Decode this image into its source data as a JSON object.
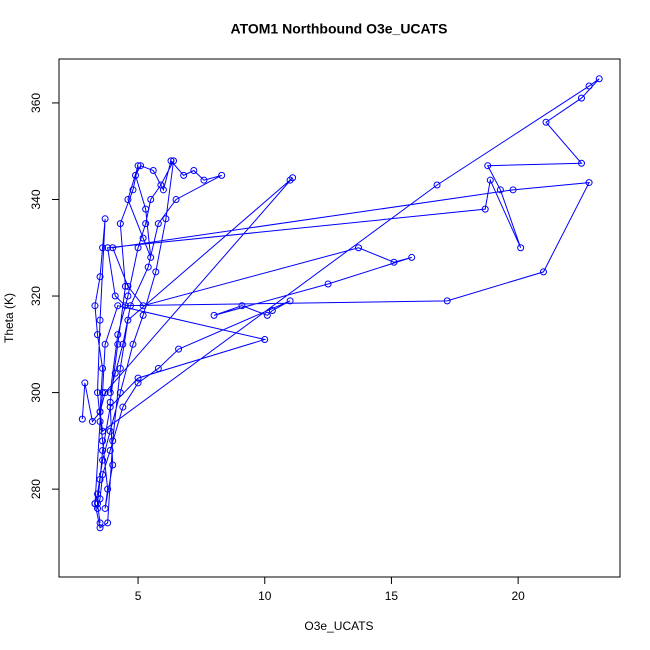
{
  "chart_data": {
    "type": "line",
    "title": "ATOM1 Northbound O3e_UCATS",
    "x_label": "O3e_UCATS",
    "y_label": "Theta (K)",
    "color": "#0000ff",
    "markers": true,
    "grid": false,
    "xlim": [
      1.88,
      24.02
    ],
    "xticks": [
      5,
      10,
      15,
      20
    ],
    "ylim": [
      261.8,
      369.1
    ],
    "yticks": [
      280,
      300,
      320,
      340,
      360
    ],
    "x": [
      2.8,
      2.9,
      3.2,
      3.5,
      3.6,
      3.4,
      3.3,
      3.5,
      3.6,
      3.7,
      3.5,
      3.4,
      3.6,
      3.8,
      3.7,
      4.0,
      3.9,
      4.2,
      4.5,
      4.3,
      4.8,
      5.0,
      4.6,
      5.2,
      5.5,
      5.3,
      4.9,
      5.1,
      5.6,
      6.0,
      6.3,
      6.8,
      7.2,
      7.6,
      8.3,
      6.5,
      5.8,
      5.4,
      4.7,
      4.4,
      4.1,
      3.9,
      4.2,
      4.6,
      5.0,
      5.3,
      5.5,
      5.9,
      6.4,
      6.1,
      5.7,
      5.2,
      4.8,
      4.3,
      3.9,
      3.6,
      3.4,
      3.3,
      3.5,
      3.8,
      4.0,
      4.3,
      4.6,
      11.0,
      11.1,
      3.7,
      3.5,
      3.6,
      16.8,
      22.8,
      23.2,
      22.5,
      21.1,
      22.5,
      18.8,
      19.3,
      20.1,
      18.9,
      18.7,
      3.8,
      4.1,
      4.5,
      17.2,
      21.0,
      22.8,
      19.8,
      4.0,
      4.6,
      5.2,
      13.7,
      15.1,
      15.8,
      12.5,
      8.0,
      9.1,
      10.1,
      10.3,
      11.0,
      6.6,
      5.8,
      5.0,
      4.4,
      3.9,
      3.6,
      3.5,
      3.4,
      3.3,
      3.5,
      3.6,
      3.7,
      4.2,
      10.0,
      5.0,
      3.9,
      3.6,
      3.5,
      3.4,
      3.5
    ],
    "values": [
      294.5,
      302,
      294,
      296,
      305,
      312,
      318,
      324,
      330,
      336,
      315,
      300,
      290,
      280,
      276,
      285,
      298,
      310,
      322,
      335,
      342,
      347,
      340,
      332,
      328,
      338,
      345,
      347,
      346,
      342,
      348,
      345,
      346,
      344,
      345,
      340,
      335,
      326,
      318,
      310,
      304,
      300,
      312,
      320,
      330,
      335,
      340,
      343,
      348,
      336,
      325,
      316,
      310,
      300,
      292,
      286,
      279,
      277,
      272,
      273,
      290,
      305,
      315,
      344,
      344.5,
      300,
      296,
      292,
      343,
      363.5,
      365,
      361,
      356,
      347.5,
      347,
      342,
      330,
      344,
      338,
      330,
      320,
      318,
      319,
      325,
      343.5,
      342,
      330,
      322,
      318,
      330,
      327,
      328,
      322.5,
      316,
      318,
      316,
      317,
      319,
      309,
      305,
      302,
      297,
      288,
      283,
      278,
      276,
      277,
      294,
      300,
      310,
      318,
      311,
      303,
      297,
      288,
      282,
      277,
      273
    ]
  }
}
